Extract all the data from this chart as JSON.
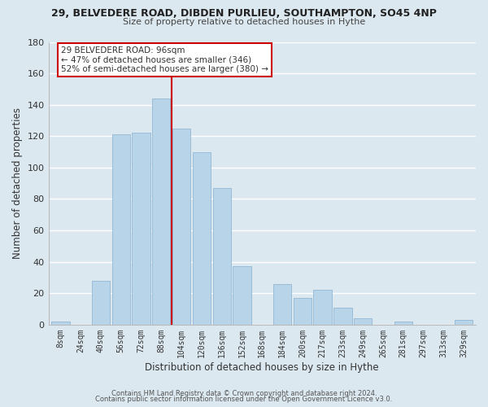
{
  "title": "29, BELVEDERE ROAD, DIBDEN PURLIEU, SOUTHAMPTON, SO45 4NP",
  "subtitle": "Size of property relative to detached houses in Hythe",
  "xlabel": "Distribution of detached houses by size in Hythe",
  "ylabel": "Number of detached properties",
  "bar_color": "#b8d4e8",
  "bar_edge_color": "#9abcd8",
  "background_color": "#dce8f0",
  "grid_color": "#ffffff",
  "bins": [
    "8sqm",
    "24sqm",
    "40sqm",
    "56sqm",
    "72sqm",
    "88sqm",
    "104sqm",
    "120sqm",
    "136sqm",
    "152sqm",
    "168sqm",
    "184sqm",
    "200sqm",
    "217sqm",
    "233sqm",
    "249sqm",
    "265sqm",
    "281sqm",
    "297sqm",
    "313sqm",
    "329sqm"
  ],
  "values": [
    2,
    0,
    28,
    121,
    122,
    144,
    125,
    110,
    87,
    37,
    0,
    26,
    17,
    22,
    11,
    4,
    0,
    2,
    0,
    0,
    3
  ],
  "ylim": [
    0,
    180
  ],
  "yticks": [
    0,
    20,
    40,
    60,
    80,
    100,
    120,
    140,
    160,
    180
  ],
  "property_line_color": "#cc0000",
  "annotation_text": "29 BELVEDERE ROAD: 96sqm\n← 47% of detached houses are smaller (346)\n52% of semi-detached houses are larger (380) →",
  "annotation_box_color": "#ffffff",
  "annotation_box_edge_color": "#cc0000",
  "footer_line1": "Contains HM Land Registry data © Crown copyright and database right 2024.",
  "footer_line2": "Contains public sector information licensed under the Open Government Licence v3.0."
}
